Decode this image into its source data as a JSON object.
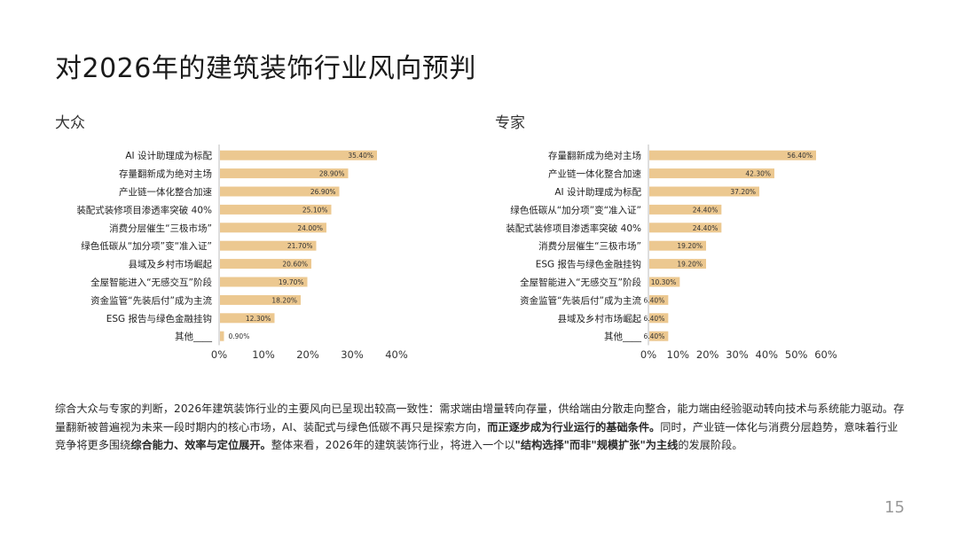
{
  "page": {
    "title": "对2026年的建筑装饰行业风向预判",
    "number": "15"
  },
  "summary": [
    {
      "text": "综合大众与专家的判断，2026年建筑装饰行业的主要风向已呈现出较高一致性：需求端由增量转向存量，供给端由分散走向整合，能力端由经验驱动转向技术与系统能力驱动。存量翻新被普遍视为未来一段时期内的核心市场，AI、装配式与绿色低碳不再只是探索方向，",
      "bold": false
    },
    {
      "text": "而正逐步成为行业运行的基础条件。",
      "bold": true
    },
    {
      "text": "同时，产业链一体化与消费分层趋势，意味着行业竞争将更多围绕",
      "bold": false
    },
    {
      "text": "综合能力、效率与定位展开。",
      "bold": true
    },
    {
      "text": "整体来看，2026年的建筑装饰行业，将进入一个以",
      "bold": false
    },
    {
      "text": "\"结构选择\"而非\"规模扩张\"为主线",
      "bold": true
    },
    {
      "text": "的发展阶段。",
      "bold": false
    }
  ],
  "chart_data": [
    {
      "type": "bar",
      "orientation": "horizontal",
      "title": "大众",
      "categories": [
        "AI 设计助理成为标配",
        "存量翻新成为绝对主场",
        "产业链一体化整合加速",
        "装配式装修项目渗透率突破 40%",
        "消费分层催生“三极市场”",
        "绿色低碳从“加分项”变“准入证”",
        "县域及乡村市场崛起",
        "全屋智能进入“无感交互”阶段",
        "资金监管“先装后付”成为主流",
        "ESG 报告与绿色金融挂钩",
        "其他____"
      ],
      "values": [
        35.4,
        28.9,
        26.9,
        25.1,
        24.0,
        21.7,
        20.6,
        19.7,
        18.2,
        12.3,
        0.9
      ],
      "data_labels": [
        "35.40%",
        "28.90%",
        "26.90%",
        "25.10%",
        "24.00%",
        "21.70%",
        "20.60%",
        "19.70%",
        "18.20%",
        "12.30%",
        "0.90%"
      ],
      "xlim": [
        0,
        40
      ],
      "xticks": [
        "0%",
        "10%",
        "20%",
        "30%",
        "40%"
      ],
      "color": "#ecc890",
      "grid": false
    },
    {
      "type": "bar",
      "orientation": "horizontal",
      "title": "专家",
      "categories": [
        "存量翻新成为绝对主场",
        "产业链一体化整合加速",
        "AI 设计助理成为标配",
        "绿色低碳从“加分项”变“准入证”",
        "装配式装修项目渗透率突破 40%",
        "消费分层催生“三极市场”",
        "ESG 报告与绿色金融挂钩",
        "全屋智能进入“无感交互”阶段",
        "资金监管“先装后付”成为主流",
        "县域及乡村市场崛起",
        "其他____"
      ],
      "values": [
        56.4,
        42.3,
        37.2,
        24.4,
        24.4,
        19.2,
        19.2,
        10.3,
        6.4,
        6.4,
        6.4
      ],
      "data_labels": [
        "56.40%",
        "42.30%",
        "37.20%",
        "24.40%",
        "24.40%",
        "19.20%",
        "19.20%",
        "10.30%",
        "6.40%",
        "6.40%",
        "6.40%"
      ],
      "xlim": [
        0,
        60
      ],
      "xticks": [
        "0%",
        "10%",
        "20%",
        "30%",
        "40%",
        "50%",
        "60%"
      ],
      "color": "#ecc890",
      "grid": false
    }
  ]
}
